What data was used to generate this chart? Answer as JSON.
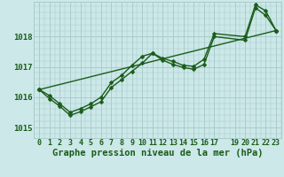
{
  "xlabel": "Graphe pression niveau de la mer (hPa)",
  "bg_color": "#cce8e8",
  "grid_color": "#aacccc",
  "line_color": "#1a5c1a",
  "xlim": [
    -0.5,
    23.5
  ],
  "ylim": [
    1014.65,
    1019.15
  ],
  "yticks": [
    1015,
    1016,
    1017,
    1018
  ],
  "xticks": [
    0,
    1,
    2,
    3,
    4,
    5,
    6,
    7,
    8,
    9,
    10,
    11,
    12,
    13,
    14,
    15,
    16,
    17,
    19,
    20,
    21,
    22,
    23
  ],
  "series1_x": [
    0,
    1,
    2,
    3,
    4,
    5,
    6,
    7,
    8,
    9,
    10,
    11,
    12,
    13,
    14,
    15,
    16,
    17,
    20,
    21,
    22,
    23
  ],
  "series1_y": [
    1016.25,
    1016.05,
    1015.78,
    1015.5,
    1015.62,
    1015.78,
    1016.0,
    1016.48,
    1016.72,
    1017.05,
    1017.35,
    1017.45,
    1017.28,
    1017.18,
    1017.05,
    1017.02,
    1017.25,
    1018.1,
    1018.0,
    1019.05,
    1018.85,
    1018.2
  ],
  "series2_x": [
    0,
    1,
    2,
    3,
    4,
    5,
    6,
    7,
    8,
    9,
    10,
    11,
    12,
    13,
    14,
    15,
    16,
    17,
    20,
    21,
    22,
    23
  ],
  "series2_y": [
    1016.25,
    1015.95,
    1015.7,
    1015.4,
    1015.52,
    1015.68,
    1015.85,
    1016.32,
    1016.58,
    1016.85,
    1017.12,
    1017.45,
    1017.22,
    1017.08,
    1016.98,
    1016.92,
    1017.08,
    1018.0,
    1017.88,
    1018.95,
    1018.7,
    1018.2
  ],
  "series3_x": [
    0,
    23
  ],
  "series3_y": [
    1016.25,
    1018.2
  ],
  "marker": "D",
  "markersize": 2.5,
  "linewidth": 1.0,
  "xlabel_fontsize": 7.5,
  "tick_fontsize": 6.0,
  "ytick_fontsize": 6.5
}
